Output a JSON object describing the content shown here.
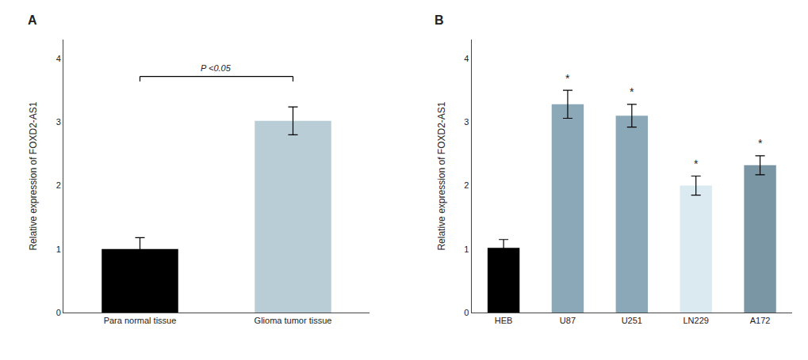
{
  "chart_data": [
    {
      "type": "bar",
      "title": "A",
      "categories": [
        "Para normal tissue",
        "Glioma tumor tissue"
      ],
      "values": [
        1.0,
        3.02
      ],
      "errors": [
        0.18,
        0.22
      ],
      "colors": [
        "#000000",
        "#b8cdd6"
      ],
      "ylabel": "Relative expression of FOXD2-AS1",
      "ylim": [
        0,
        4.3
      ],
      "yticks": [
        0,
        1,
        2,
        3,
        4
      ],
      "grid": false,
      "annotations": [
        {
          "text": "P <0.05",
          "between": [
            "Para normal tissue",
            "Glioma tumor tissue"
          ],
          "y": 3.72
        }
      ]
    },
    {
      "type": "bar",
      "title": "B",
      "categories": [
        "HEB",
        "U87",
        "U251",
        "LN229",
        "A172"
      ],
      "values": [
        1.02,
        3.28,
        3.1,
        2.0,
        2.32
      ],
      "errors": [
        0.13,
        0.22,
        0.18,
        0.15,
        0.15
      ],
      "colors": [
        "#000000",
        "#8aa8b8",
        "#8aa8b8",
        "#daeaf0",
        "#7a96a4"
      ],
      "ylabel": "Relative expression of FOXD2-AS1",
      "ylim": [
        0,
        4.3
      ],
      "yticks": [
        0,
        1,
        2,
        3,
        4
      ],
      "grid": false,
      "annotations": [
        {
          "text": "*",
          "category": "U87"
        },
        {
          "text": "*",
          "category": "U251"
        },
        {
          "text": "*",
          "category": "LN229"
        },
        {
          "text": "*",
          "category": "A172"
        }
      ]
    }
  ]
}
